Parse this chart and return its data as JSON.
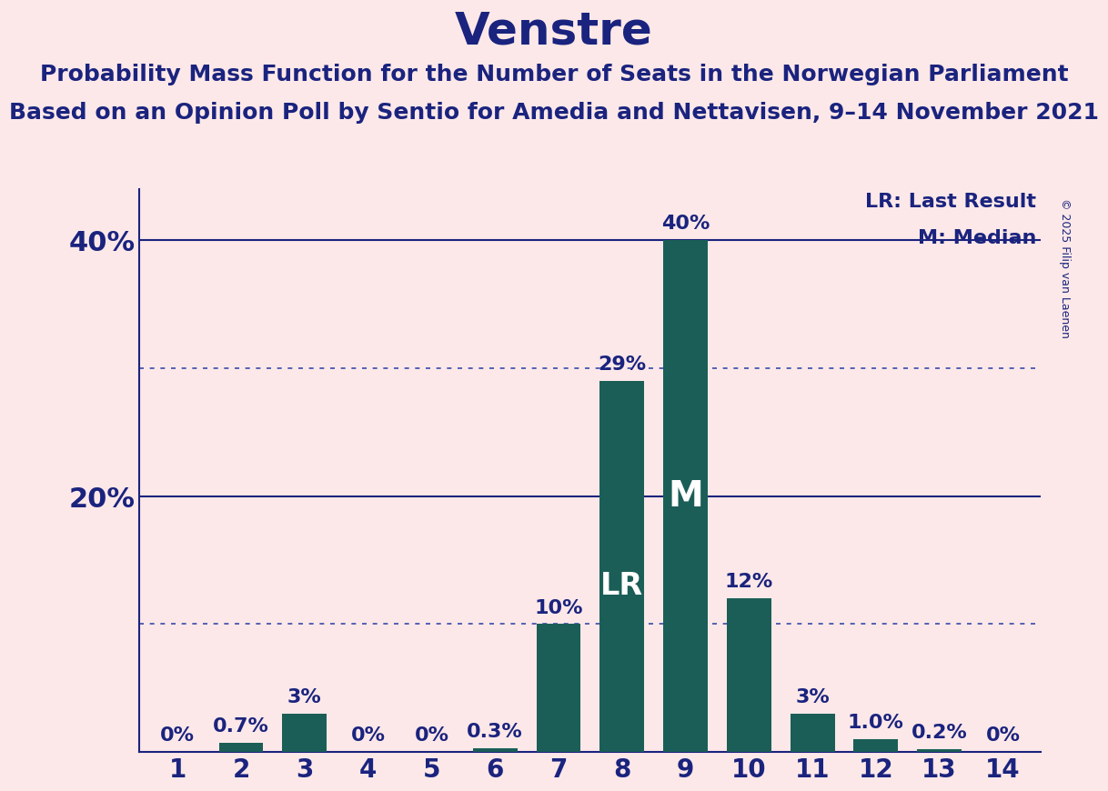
{
  "title": "Venstre",
  "subtitle1": "Probability Mass Function for the Number of Seats in the Norwegian Parliament",
  "subtitle2": "Based on an Opinion Poll by Sentio for Amedia and Nettavisen, 9–14 November 2021",
  "copyright": "© 2025 Filip van Laenen",
  "categories": [
    1,
    2,
    3,
    4,
    5,
    6,
    7,
    8,
    9,
    10,
    11,
    12,
    13,
    14
  ],
  "values": [
    0.0,
    0.7,
    3.0,
    0.0,
    0.0,
    0.3,
    10.0,
    29.0,
    40.0,
    12.0,
    3.0,
    1.0,
    0.2,
    0.0
  ],
  "labels": [
    "0%",
    "0.7%",
    "3%",
    "0%",
    "0%",
    "0.3%",
    "10%",
    "29%",
    "40%",
    "12%",
    "3%",
    "1.0%",
    "0.2%",
    "0%"
  ],
  "bar_color": "#1b5e57",
  "background_color": "#fce8e8",
  "text_color": "#1a237e",
  "axis_color": "#1a237e",
  "grid_solid_color": "#1a237e",
  "grid_dotted_color": "#3949ab",
  "solid_lines": [
    20,
    40
  ],
  "dotted_lines": [
    10,
    30
  ],
  "ylim": [
    0,
    44
  ],
  "lr_bar_index": 7,
  "median_bar_index": 8,
  "lr_label": "LR",
  "median_label": "M",
  "legend_lr": "LR: Last Result",
  "legend_m": "M: Median",
  "title_fontsize": 36,
  "subtitle_fontsize": 18,
  "tick_fontsize": 20,
  "ytick_fontsize": 22,
  "bar_label_fontsize": 16,
  "lr_fontsize": 24,
  "m_fontsize": 28,
  "legend_fontsize": 16,
  "copyright_fontsize": 9
}
